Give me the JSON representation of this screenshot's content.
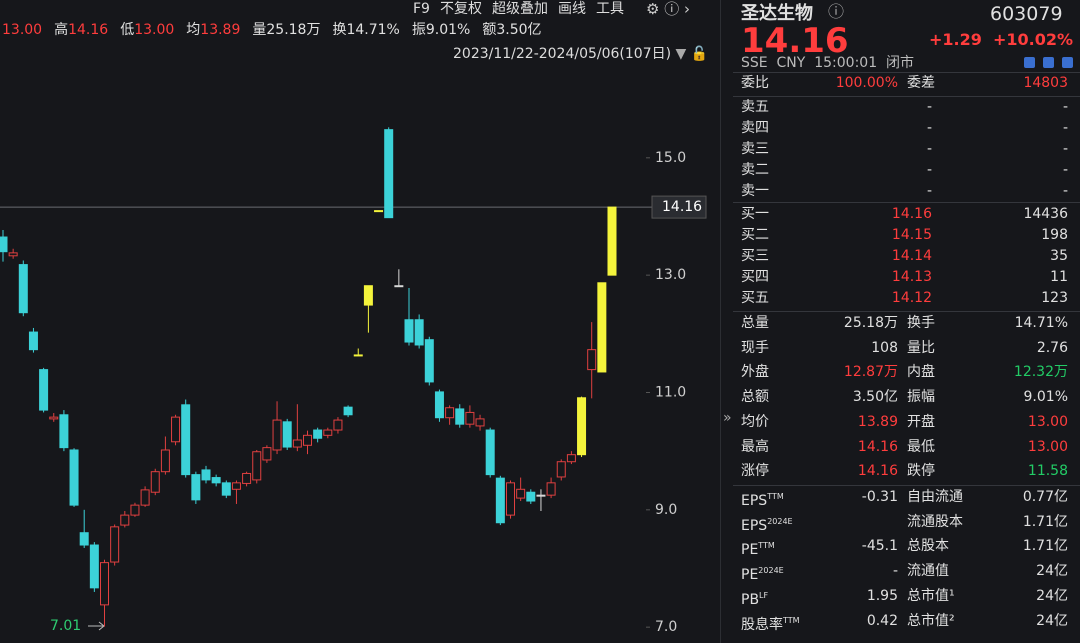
{
  "header": {
    "quotes": [
      {
        "value": "13.00",
        "color": "red"
      },
      {
        "label": "高",
        "value": "14.16",
        "color": "red"
      },
      {
        "label": "低",
        "value": "13.00",
        "color": "red"
      },
      {
        "label": "均",
        "value": "13.89",
        "color": "red"
      },
      {
        "label": "量",
        "value": "25.18万",
        "color": "white"
      },
      {
        "label": "换",
        "value": "14.71%",
        "color": "white"
      },
      {
        "label": "振",
        "value": "9.01%",
        "color": "white"
      },
      {
        "label": "额",
        "value": "3.50亿",
        "color": "white"
      }
    ],
    "toolbar": [
      "F9",
      "不复权",
      "超级叠加",
      "画线",
      "工具"
    ],
    "range": "2023/11/22-2024/05/06(107日)"
  },
  "chart_data": {
    "type": "candlestick",
    "ylim": [
      6.73,
      17.69
    ],
    "yticks": [
      {
        "value": 15,
        "label": "15.0"
      },
      {
        "value": 13,
        "label": "13.0"
      },
      {
        "value": 11,
        "label": "11.0"
      },
      {
        "value": 9,
        "label": "9.0"
      },
      {
        "value": 7,
        "label": "7.0"
      }
    ],
    "up_color": "#e04040",
    "down_color": "#3cd2d8",
    "limit_color": "#f4f43c",
    "flat_color": "#d8d8d8",
    "open": [
      13.65,
      13.33,
      13.18,
      12.03,
      11.39,
      10.55,
      10.62,
      10.02,
      8.61,
      8.4,
      7.38,
      8.11,
      8.74,
      8.91,
      9.08,
      9.3,
      9.65,
      10.16,
      10.79,
      9.6,
      9.68,
      9.55,
      9.46,
      9.35,
      9.45,
      9.51,
      9.85,
      10.02,
      10.5,
      10.07,
      10.1,
      10.36,
      10.27,
      10.36,
      10.75,
      11.64,
      12.49,
      14.1,
      15.48,
      12.82,
      12.24,
      12.24,
      11.9,
      11.01,
      10.57,
      10.72,
      10.46,
      10.43,
      10.36,
      9.54,
      8.91,
      9.2,
      9.3,
      9.25,
      9.25,
      9.56,
      9.82,
      9.94,
      11.39,
      11.35,
      13.0
    ],
    "high": [
      13.77,
      13.45,
      13.25,
      12.1,
      11.42,
      10.65,
      10.7,
      10.05,
      9.0,
      8.45,
      8.15,
      8.75,
      8.98,
      9.12,
      9.4,
      9.7,
      10.25,
      10.62,
      10.88,
      9.65,
      9.75,
      9.6,
      9.5,
      9.5,
      9.65,
      10.02,
      10.1,
      10.85,
      10.55,
      10.8,
      10.35,
      10.4,
      10.4,
      10.58,
      10.78,
      11.75,
      12.82,
      14.1,
      15.52,
      13.1,
      12.78,
      12.33,
      11.95,
      11.05,
      10.78,
      10.8,
      10.78,
      10.62,
      10.4,
      9.58,
      9.5,
      9.55,
      9.35,
      9.35,
      9.55,
      9.86,
      10.0,
      10.93,
      12.2,
      12.87,
      14.16
    ],
    "low": [
      13.23,
      13.28,
      12.3,
      11.68,
      10.66,
      10.5,
      10.0,
      9.05,
      8.35,
      7.6,
      7.01,
      8.05,
      8.7,
      8.88,
      9.05,
      9.25,
      9.6,
      10.1,
      9.55,
      9.1,
      9.45,
      9.4,
      9.2,
      9.1,
      9.4,
      9.45,
      9.8,
      9.95,
      10.02,
      10.0,
      9.95,
      10.15,
      10.22,
      10.3,
      10.58,
      11.64,
      12.02,
      14.1,
      13.98,
      12.82,
      11.8,
      11.75,
      11.12,
      10.5,
      10.45,
      10.4,
      10.4,
      10.35,
      9.55,
      8.74,
      8.85,
      9.15,
      9.1,
      8.98,
      9.2,
      9.5,
      9.78,
      9.9,
      10.9,
      11.35,
      13.0
    ],
    "close": [
      13.4,
      13.38,
      12.36,
      11.73,
      10.7,
      10.58,
      10.06,
      9.08,
      8.4,
      7.67,
      8.1,
      8.71,
      8.91,
      9.08,
      9.34,
      9.65,
      10.02,
      10.58,
      9.6,
      9.17,
      9.51,
      9.46,
      9.25,
      9.46,
      9.62,
      9.99,
      10.06,
      10.53,
      10.07,
      10.19,
      10.27,
      10.22,
      10.36,
      10.53,
      10.62,
      11.64,
      12.82,
      14.1,
      13.98,
      12.82,
      11.86,
      11.81,
      11.18,
      10.57,
      10.74,
      10.46,
      10.66,
      10.55,
      9.6,
      8.78,
      9.46,
      9.35,
      9.15,
      9.25,
      9.46,
      9.82,
      9.94,
      10.91,
      11.73,
      12.87,
      14.16
    ],
    "limit_up": [
      false,
      false,
      false,
      false,
      false,
      false,
      false,
      false,
      false,
      false,
      false,
      false,
      false,
      false,
      false,
      false,
      false,
      false,
      false,
      false,
      false,
      false,
      false,
      false,
      false,
      false,
      false,
      false,
      false,
      false,
      false,
      false,
      false,
      false,
      false,
      true,
      true,
      true,
      false,
      false,
      false,
      false,
      false,
      false,
      false,
      false,
      false,
      false,
      false,
      false,
      false,
      false,
      false,
      false,
      false,
      false,
      false,
      true,
      false,
      true,
      true
    ],
    "min_label": 7.01,
    "last_label": 14.16
  },
  "quote": {
    "name": "圣达生物",
    "code": "603079",
    "price": "14.16",
    "change": "+1.29",
    "pct": "+10.02%",
    "meta": "SSE  CNY  15:00:01  闭市",
    "ratio": {
      "label": "委比",
      "value": "100.00%",
      "label2": "委差",
      "value2": "14803"
    },
    "sells": [
      {
        "label": "卖五",
        "price": "-",
        "volume": "-"
      },
      {
        "label": "卖四",
        "price": "-",
        "volume": "-"
      },
      {
        "label": "卖三",
        "price": "-",
        "volume": "-"
      },
      {
        "label": "卖二",
        "price": "-",
        "volume": "-"
      },
      {
        "label": "卖一",
        "price": "-",
        "volume": "-"
      }
    ],
    "buys": [
      {
        "label": "买一",
        "price": "14.16",
        "volume": "14436"
      },
      {
        "label": "买二",
        "price": "14.15",
        "volume": "198"
      },
      {
        "label": "买三",
        "price": "14.14",
        "volume": "35"
      },
      {
        "label": "买四",
        "price": "14.13",
        "volume": "11"
      },
      {
        "label": "买五",
        "price": "14.12",
        "volume": "123"
      }
    ],
    "stats": [
      {
        "label": "总量",
        "value": "25.18万",
        "color": "white",
        "label2": "换手",
        "value2": "14.71%",
        "color2": "white"
      },
      {
        "label": "现手",
        "value": "108",
        "color": "white",
        "label2": "量比",
        "value2": "2.76",
        "color2": "white"
      },
      {
        "label": "外盘",
        "value": "12.87万",
        "color": "red",
        "label2": "内盘",
        "value2": "12.32万",
        "color2": "green"
      },
      {
        "label": "总额",
        "value": "3.50亿",
        "color": "white",
        "label2": "振幅",
        "value2": "9.01%",
        "color2": "white"
      },
      {
        "label": "均价",
        "value": "13.89",
        "color": "red",
        "label2": "开盘",
        "value2": "13.00",
        "color2": "red"
      },
      {
        "label": "最高",
        "value": "14.16",
        "color": "red",
        "label2": "最低",
        "value2": "13.00",
        "color2": "red"
      },
      {
        "label": "涨停",
        "value": "14.16",
        "color": "red",
        "label2": "跌停",
        "value2": "11.58",
        "color2": "green"
      }
    ],
    "fundamentals": [
      {
        "label": "EPS",
        "sup": "TTM",
        "value": "-0.31",
        "label2": "自由流通",
        "value2": "0.77亿"
      },
      {
        "label": "EPS",
        "sup": "2024E",
        "label2": "流通股本",
        "value2": "1.71亿"
      },
      {
        "label": "PE",
        "sup": "TTM",
        "value": "-45.1",
        "label2": "总股本",
        "value2": "1.71亿"
      },
      {
        "label": "PE",
        "sup": "2024E",
        "value": "-",
        "label2": "流通值",
        "value2": "24亿"
      },
      {
        "label": "PB",
        "sup": "LF",
        "value": "1.95",
        "label2": "总市值¹",
        "value2": "24亿"
      },
      {
        "label": "股息率",
        "sup": "TTM",
        "value": "0.42",
        "label2": "总市值²",
        "value2": "24亿"
      }
    ]
  }
}
